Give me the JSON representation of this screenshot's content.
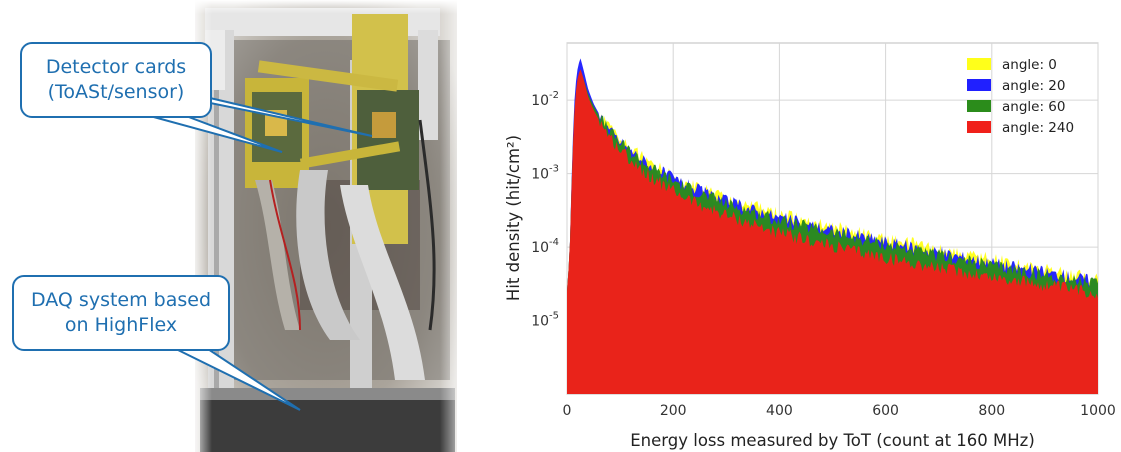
{
  "photo": {
    "callouts": [
      {
        "line1": "Detector cards",
        "line2": "(ToASt/sensor)"
      },
      {
        "line1": "DAQ system based",
        "line2": "on HighFlex"
      }
    ]
  },
  "chart_data": {
    "type": "area",
    "title": "",
    "xlabel": "Energy loss measured by ToT (count at 160 MHz)",
    "ylabel": "Hit density (hit/cm²)",
    "xlim": [
      0,
      1000
    ],
    "ylim": [
      1e-06,
      0.06
    ],
    "yscale": "log",
    "grid": true,
    "legend": "top-right",
    "x_ticks": [
      "0",
      "200",
      "400",
      "600",
      "800",
      "1000"
    ],
    "y_ticks": [
      {
        "value": 0.01,
        "base": "10",
        "exp": "-2"
      },
      {
        "value": 0.001,
        "base": "10",
        "exp": "-3"
      },
      {
        "value": 0.0001,
        "base": "10",
        "exp": "-4"
      },
      {
        "value": 1e-05,
        "base": "10",
        "exp": "-5"
      }
    ],
    "x": [
      0,
      5,
      10,
      15,
      20,
      25,
      30,
      40,
      50,
      60,
      80,
      100,
      150,
      200,
      250,
      300,
      400,
      500,
      600,
      700,
      800,
      900,
      1000
    ],
    "series": [
      {
        "name": "angle: 0",
        "color": "#ffff1a",
        "values": [
          2.5e-05,
          8e-05,
          0.0015,
          0.01,
          0.02,
          0.028,
          0.022,
          0.013,
          0.0088,
          0.0066,
          0.0041,
          0.0029,
          0.0015,
          0.00092,
          0.00063,
          0.00046,
          0.00028,
          0.00019,
          0.00013,
          9.45e-05,
          6.91e-05,
          5.13e-05,
          3.7e-05
        ]
      },
      {
        "name": "angle: 20",
        "color": "#2020ff",
        "values": [
          2.5e-05,
          8e-05,
          0.002,
          0.014,
          0.027,
          0.038,
          0.028,
          0.014,
          0.009,
          0.0066,
          0.0039,
          0.0027,
          0.0014,
          0.00085,
          0.00058,
          0.00042,
          0.00025,
          0.00017,
          0.000118,
          8.43e-05,
          6.11e-05,
          4.54e-05,
          3.4e-05
        ]
      },
      {
        "name": "angle: 60",
        "color": "#2b8c1b",
        "values": [
          2.5e-05,
          8e-05,
          0.0015,
          0.01,
          0.019,
          0.026,
          0.021,
          0.012,
          0.0083,
          0.0062,
          0.0038,
          0.0026,
          0.0013,
          0.0008,
          0.00054,
          0.00039,
          0.00023,
          0.000155,
          0.000108,
          7.64e-05,
          5.54e-05,
          4.12e-05,
          3.1e-05
        ]
      },
      {
        "name": "angle: 240",
        "color": "#f0201a",
        "values": [
          2.5e-05,
          8e-05,
          0.0015,
          0.01,
          0.02,
          0.027,
          0.021,
          0.011,
          0.0074,
          0.0054,
          0.0032,
          0.0021,
          0.00099,
          0.00058,
          0.00038,
          0.00027,
          0.000155,
          0.000102,
          7.1e-05,
          5.18e-05,
          3.91e-05,
          3.01e-05,
          2.35e-05
        ]
      }
    ]
  }
}
